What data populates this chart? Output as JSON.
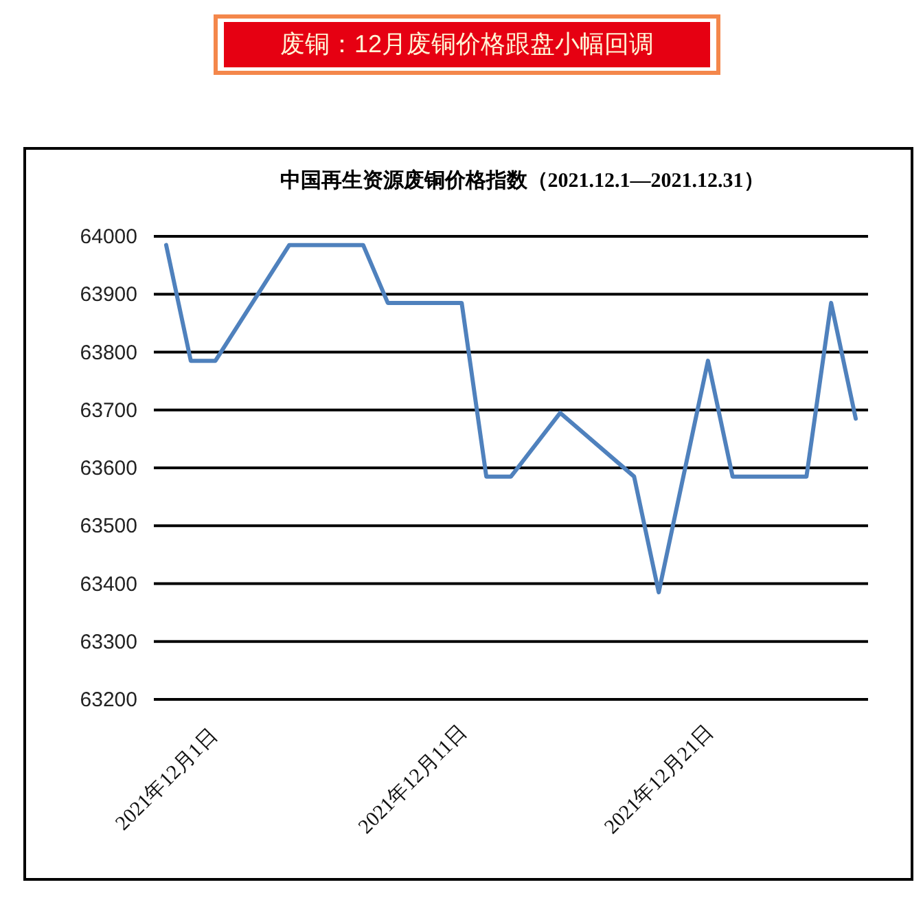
{
  "chart_data": {
    "type": "line",
    "title": "废铜：12月废铜价格跟盘小幅回调",
    "subtitle": "中国再生资源废铜价格指数（2021.12.1—2021.12.31）",
    "x": [
      "2021-12-01",
      "2021-12-02",
      "2021-12-03",
      "2021-12-06",
      "2021-12-09",
      "2021-12-10",
      "2021-12-13",
      "2021-12-14",
      "2021-12-15",
      "2021-12-17",
      "2021-12-20",
      "2021-12-21",
      "2021-12-23",
      "2021-12-24",
      "2021-12-27",
      "2021-12-28",
      "2021-12-29"
    ],
    "series": [
      {
        "color": "#4f81bd",
        "values": [
          63985,
          63785,
          63785,
          63985,
          63985,
          63885,
          63885,
          63585,
          63585,
          63695,
          63585,
          63385,
          63785,
          63585,
          63585,
          63885,
          63685
        ]
      }
    ],
    "xlim": [
      "2021-11-30T12:00",
      "2021-12-29T12:00"
    ],
    "xticks": [
      {
        "value": "2021-12-01",
        "label": "2021年12月1日"
      },
      {
        "value": "2021-12-11",
        "label": "2021年12月11日"
      },
      {
        "value": "2021-12-21",
        "label": "2021年12月21日"
      }
    ],
    "ylim": [
      63200,
      64000
    ],
    "yticks": [
      63200,
      63300,
      63400,
      63500,
      63600,
      63700,
      63800,
      63900,
      64000
    ],
    "grid": "y"
  }
}
